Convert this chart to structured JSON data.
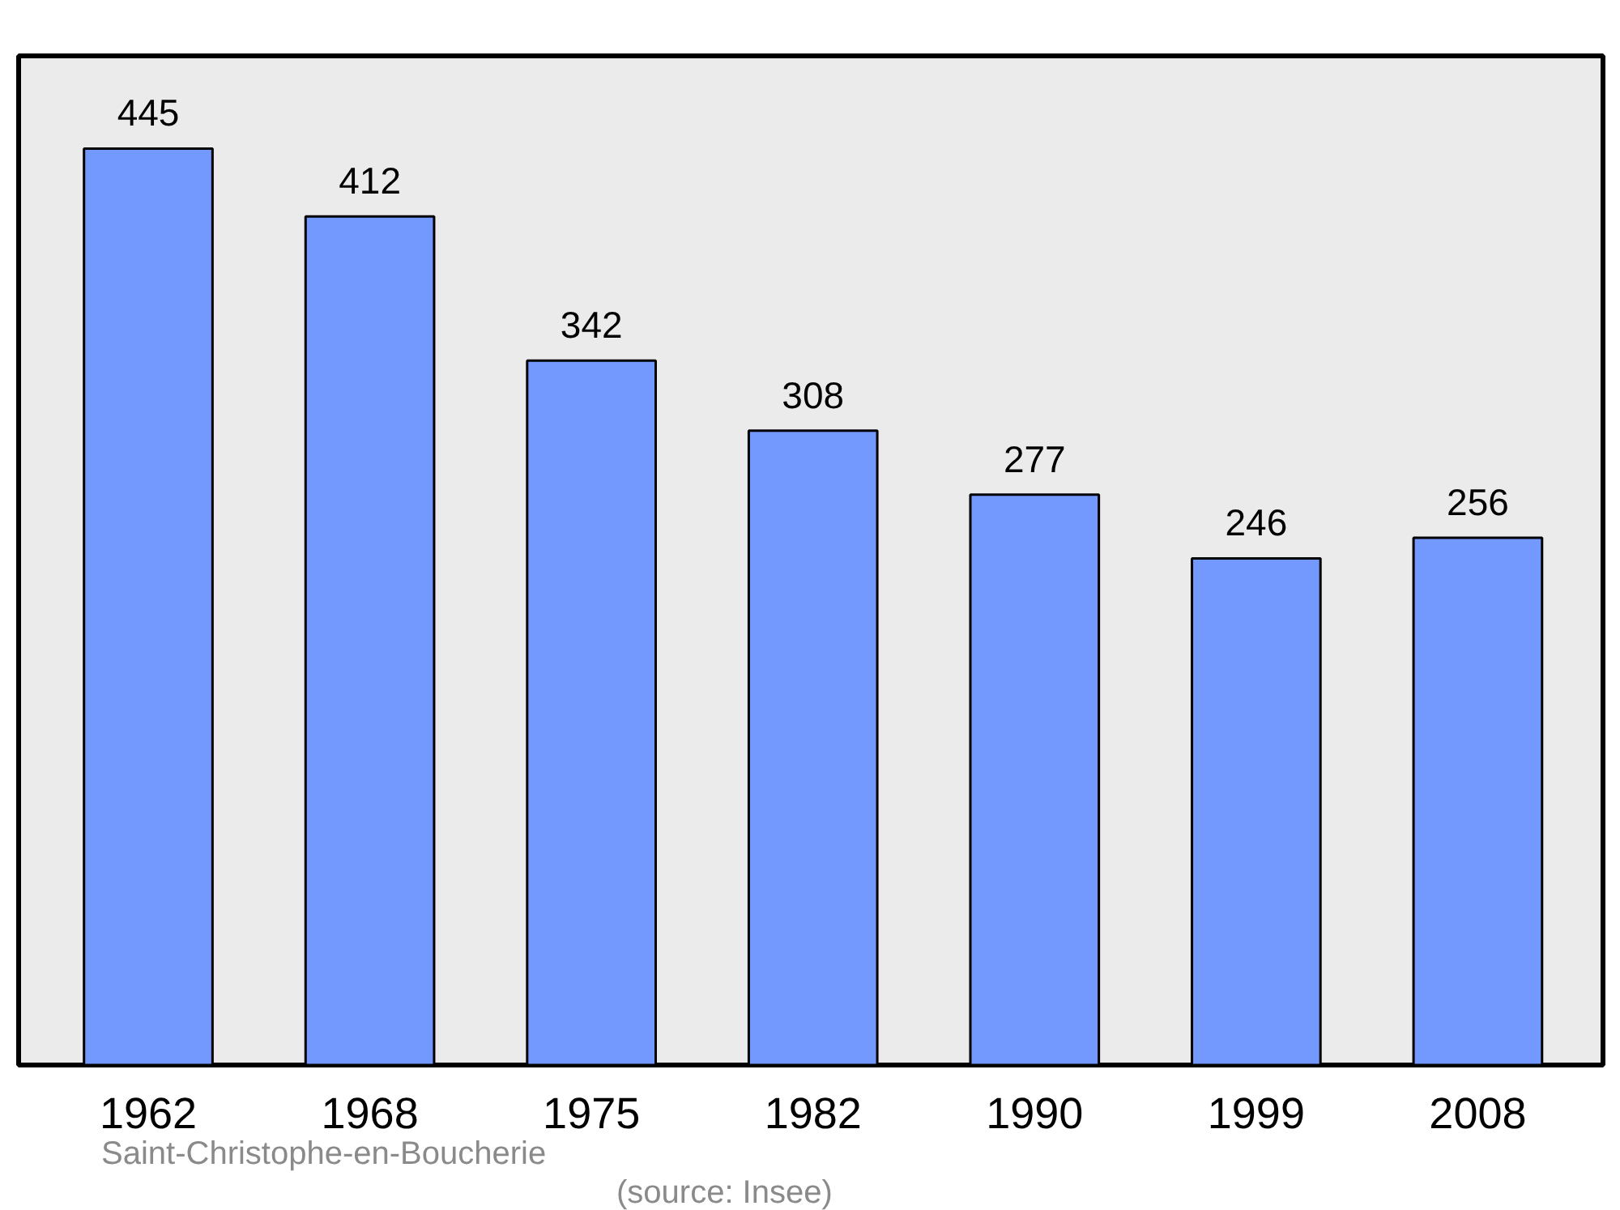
{
  "chart_data": {
    "type": "bar",
    "categories": [
      "1962",
      "1968",
      "1975",
      "1982",
      "1990",
      "1999",
      "2008"
    ],
    "values": [
      445,
      412,
      342,
      308,
      277,
      246,
      256
    ],
    "color": "#7399ff",
    "ylim": [
      0,
      490
    ],
    "tick_labels": "x",
    "data_labels": true,
    "grid": false,
    "annotations": [
      "Saint-Christophe-en-Boucherie",
      "(source: Insee)"
    ]
  }
}
